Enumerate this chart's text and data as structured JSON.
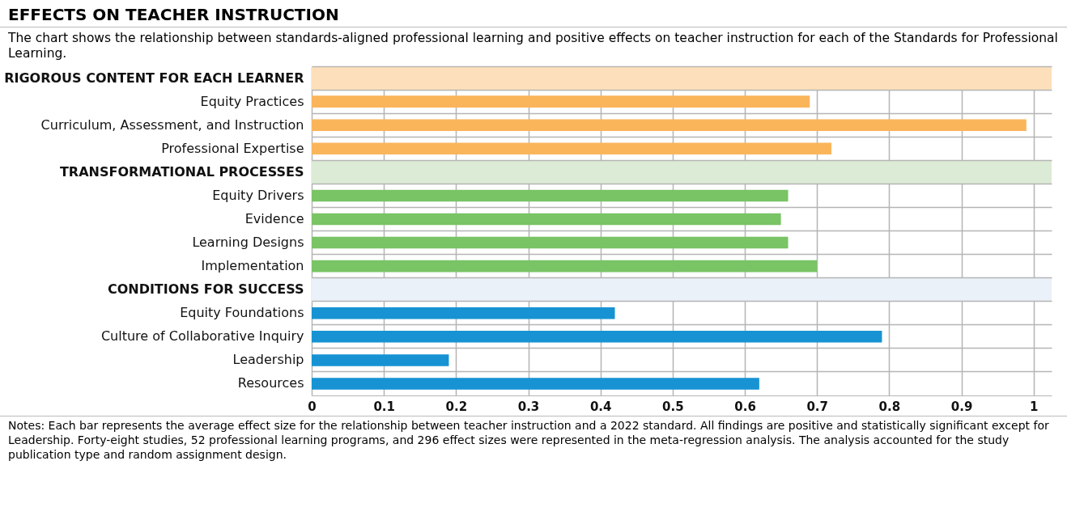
{
  "chart_data": {
    "type": "bar",
    "orientation": "horizontal",
    "title": "EFFECTS ON TEACHER INSTRUCTION",
    "subtitle": "The chart shows the relationship between standards-aligned professional learning and positive effects on teacher instruction for each of the Standards for Professional Learning.",
    "categories": [
      "RIGOROUS CONTENT FOR EACH LEARNER",
      "Equity Practices",
      "Curriculum, Assessment, and Instruction",
      "Professional Expertise",
      "TRANSFORMATIONAL  PROCESSES",
      "Equity Drivers",
      "Evidence",
      "Learning Designs",
      "Implementation",
      "CONDITIONS FOR SUCCESS",
      "Equity Foundations",
      "Culture of Collaborative Inquiry",
      "Leadership",
      "Resources"
    ],
    "values": [
      null,
      0.69,
      0.99,
      0.72,
      null,
      0.66,
      0.65,
      0.66,
      0.7,
      null,
      0.42,
      0.79,
      0.19,
      0.62
    ],
    "colors": [
      null,
      "#fab55b",
      "#fab55b",
      "#fab55b",
      null,
      "#79c465",
      "#79c465",
      "#79c465",
      "#79c465",
      null,
      "#1793d3",
      "#1793d3",
      "#1793d3",
      "#1793d3"
    ],
    "bands": [
      {
        "axis": "y",
        "from": "RIGOROUS CONTENT FOR EACH LEARNER",
        "to": "RIGOROUS CONTENT FOR EACH LEARNER",
        "color": "#fde0bb"
      },
      {
        "axis": "y",
        "from": "TRANSFORMATIONAL  PROCESSES",
        "to": "TRANSFORMATIONAL  PROCESSES",
        "color": "#dcebd5"
      },
      {
        "axis": "y",
        "from": "CONDITIONS FOR SUCCESS",
        "to": "CONDITIONS FOR SUCCESS",
        "color": "#eaf1f8"
      }
    ],
    "xlim": [
      0,
      1.025
    ],
    "xticks": [
      0,
      0.1,
      0.2,
      0.3,
      0.4,
      0.5,
      0.6,
      0.7,
      0.8,
      0.9,
      1
    ],
    "grid": true,
    "annotations": [
      "Notes: Each bar represents the average effect size for the relationship between teacher instruction and a 2022 standard. All findings are positive and statistically significant except for Leadership. Forty-eight studies, 52 professional learning programs, and 296 effect sizes were represented in the meta-regression analysis. The analysis accounted for the study publication type and random assignment design."
    ]
  }
}
